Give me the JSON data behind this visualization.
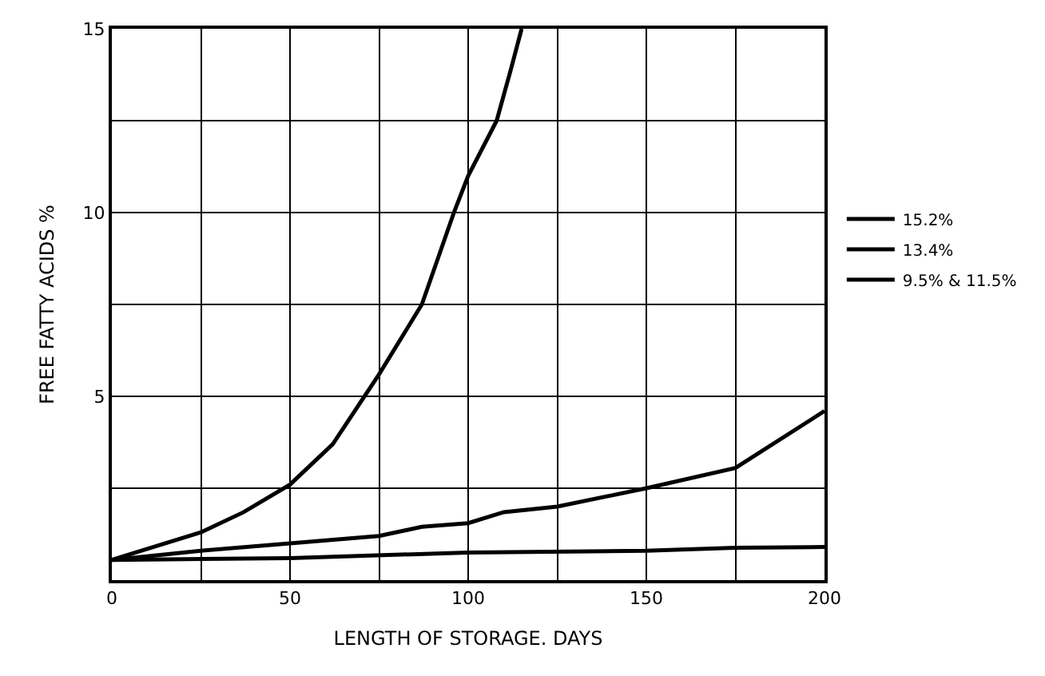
{
  "chart_data": {
    "type": "line",
    "xlabel": "LENGTH OF STORAGE. DAYS",
    "ylabel": "FREE FATTY ACIDS %",
    "xlim": [
      0,
      200
    ],
    "ylim": [
      0,
      15
    ],
    "xticks": [
      0,
      {
        "value": 25,
        "label": null
      },
      50,
      {
        "value": 75,
        "label": null
      },
      100,
      {
        "value": 125,
        "label": null
      },
      150,
      {
        "value": 175,
        "label": null
      },
      200
    ],
    "yticks": [
      {
        "value": 2.5,
        "label": null
      },
      5,
      {
        "value": 7.5,
        "label": null
      },
      10,
      {
        "value": 12.5,
        "label": null
      },
      15
    ],
    "grid": true,
    "legend": "right",
    "marker": "none",
    "line_style": "solid",
    "series": [
      {
        "name": "15.2%",
        "color": "#000000",
        "x": [
          0,
          25,
          37,
          50,
          62,
          75,
          87,
          96,
          100,
          108,
          112,
          115
        ],
        "values": [
          0.55,
          1.3,
          1.85,
          2.6,
          3.7,
          5.6,
          7.5,
          10,
          11,
          12.5,
          13.9,
          15
        ]
      },
      {
        "name": "13.4%",
        "color": "#000000",
        "x": [
          0,
          25,
          50,
          75,
          87,
          100,
          110,
          125,
          150,
          175,
          200
        ],
        "values": [
          0.55,
          0.8,
          1.0,
          1.2,
          1.45,
          1.55,
          1.85,
          2.0,
          2.5,
          3.05,
          4.6
        ]
      },
      {
        "name": "9.5% & 11.5%",
        "color": "#000000",
        "x": [
          0,
          50,
          100,
          150,
          175,
          200
        ],
        "values": [
          0.55,
          0.6,
          0.75,
          0.8,
          0.88,
          0.9
        ]
      }
    ]
  }
}
